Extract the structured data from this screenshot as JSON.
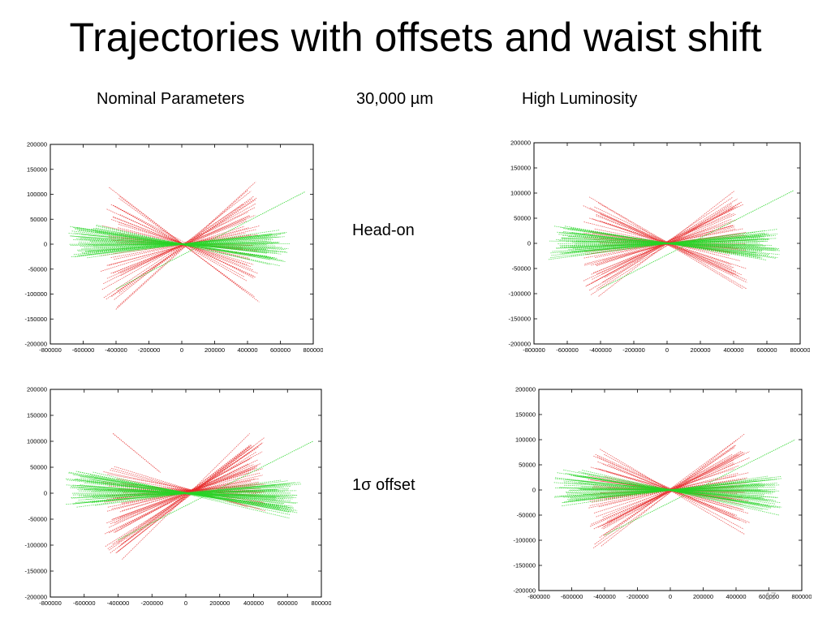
{
  "slide": {
    "title": "Trajectories with offsets and waist shift",
    "column_labels": {
      "nominal": "Nominal Parameters",
      "waist_shift": "30,000 µm",
      "high_lumi": "High Luminosity"
    },
    "row_labels": {
      "head_on": "Head-on",
      "offset": "1σ offset"
    },
    "slide_number": "17"
  },
  "colors": {
    "red": "#e62a2a",
    "green": "#25d425",
    "axes": "#000000"
  },
  "chart_data": [
    {
      "id": "nominal-head-on",
      "type": "line",
      "xlim": [
        -800000,
        800000
      ],
      "ylim": [
        -200000,
        200000
      ],
      "xticks": [
        "-800000",
        "-600000",
        "-400000",
        "-200000",
        "0",
        "200000",
        "400000",
        "600000",
        "800000"
      ],
      "yticks": [
        "200000",
        "150000",
        "100000",
        "50000",
        "0",
        "-50000",
        "-100000",
        "-150000",
        "-200000"
      ],
      "series": [
        {
          "color": "red",
          "focus": [
            20000,
            0
          ],
          "left_x": -430000,
          "right_x": 430000,
          "left_y_range": [
            -140000,
            118000
          ],
          "count": 45,
          "seed": 11
        },
        {
          "color": "green",
          "focus": [
            0,
            0
          ],
          "left_x": -600000,
          "right_x": 600000,
          "left_y_range": [
            -30000,
            45000
          ],
          "count": 55,
          "seed": 23,
          "extra_line": [
            [
              -400000,
              -90000
            ],
            [
              750000,
              105000
            ]
          ]
        }
      ]
    },
    {
      "id": "high-lumi-head-on",
      "type": "line",
      "xlim": [
        -800000,
        800000
      ],
      "ylim": [
        -200000,
        200000
      ],
      "xticks": [
        "-800000",
        "-600000",
        "-400000",
        "-200000",
        "0",
        "200000",
        "400000",
        "600000",
        "800000"
      ],
      "yticks": [
        "200000",
        "150000",
        "100000",
        "50000",
        "0",
        "-50000",
        "-100000",
        "-150000",
        "-200000"
      ],
      "series": [
        {
          "color": "red",
          "focus": [
            0,
            0
          ],
          "left_x": -440000,
          "right_x": 440000,
          "left_y_range": [
            -110000,
            95000
          ],
          "count": 55,
          "seed": 37
        },
        {
          "color": "green",
          "focus": [
            0,
            0
          ],
          "left_x": -620000,
          "right_x": 620000,
          "left_y_range": [
            -35000,
            40000
          ],
          "count": 55,
          "seed": 41,
          "extra_line": [
            [
              -400000,
              -90000
            ],
            [
              760000,
              105000
            ]
          ]
        }
      ]
    },
    {
      "id": "nominal-offset",
      "type": "line",
      "xlim": [
        -800000,
        800000
      ],
      "ylim": [
        -200000,
        200000
      ],
      "xticks": [
        "-800000",
        "-600000",
        "-400000",
        "-200000",
        "0",
        "200000",
        "400000",
        "600000",
        "800000"
      ],
      "yticks": [
        "200000",
        "150000",
        "100000",
        "50000",
        "0",
        "-50000",
        "-100000",
        "-150000",
        "-200000"
      ],
      "series": [
        {
          "color": "red",
          "focus": [
            40000,
            5000
          ],
          "left_x": -430000,
          "right_x": 430000,
          "left_y_range": [
            -135000,
            60000
          ],
          "count": 55,
          "seed": 53,
          "extra_line": [
            [
              -430000,
              115000
            ],
            [
              -150000,
              40000
            ]
          ]
        },
        {
          "color": "green",
          "focus": [
            0,
            0
          ],
          "left_x": -620000,
          "right_x": 620000,
          "left_y_range": [
            -30000,
            50000
          ],
          "count": 60,
          "seed": 59,
          "extra_line": [
            [
              -400000,
              -90000
            ],
            [
              750000,
              100000
            ]
          ]
        }
      ]
    },
    {
      "id": "high-lumi-offset",
      "type": "line",
      "xlim": [
        -800000,
        800000
      ],
      "ylim": [
        -200000,
        200000
      ],
      "xticks": [
        "-800000",
        "-600000",
        "-400000",
        "-200000",
        "0",
        "200000",
        "400000",
        "600000",
        "800000"
      ],
      "yticks": [
        "200000",
        "150000",
        "100000",
        "50000",
        "0",
        "-50000",
        "-100000",
        "-150000",
        "-200000"
      ],
      "series": [
        {
          "color": "red",
          "focus": [
            0,
            0
          ],
          "left_x": -440000,
          "right_x": 440000,
          "left_y_range": [
            -120000,
            90000
          ],
          "count": 55,
          "seed": 67
        },
        {
          "color": "green",
          "focus": [
            0,
            0
          ],
          "left_x": -620000,
          "right_x": 620000,
          "left_y_range": [
            -35000,
            45000
          ],
          "count": 55,
          "seed": 71,
          "extra_line": [
            [
              -400000,
              -90000
            ],
            [
              760000,
              100000
            ]
          ]
        }
      ]
    }
  ]
}
